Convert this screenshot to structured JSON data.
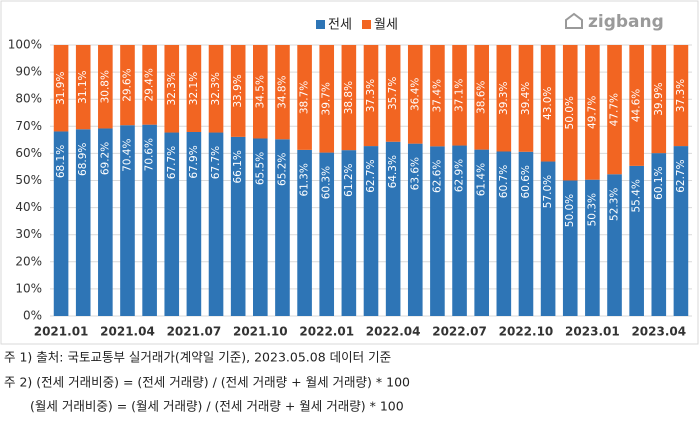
{
  "chart_data": {
    "type": "stacked_bar",
    "logo": "zigbang",
    "categories": [
      "2021.01",
      null,
      null,
      "2021.04",
      null,
      null,
      "2021.07",
      null,
      null,
      "2021.10",
      null,
      null,
      "2022.01",
      null,
      null,
      "2022.04",
      null,
      null,
      "2022.07",
      null,
      null,
      "2022.10",
      null,
      null,
      "2023.01",
      null,
      null,
      "2023.04",
      null
    ],
    "series": [
      {
        "name": "전세",
        "color": "#2e75b6",
        "values": [
          68.1,
          68.9,
          69.2,
          70.4,
          70.6,
          67.7,
          67.9,
          67.7,
          66.1,
          65.5,
          65.2,
          61.3,
          60.3,
          61.2,
          62.7,
          64.3,
          63.6,
          62.6,
          62.9,
          61.4,
          60.7,
          60.6,
          57.0,
          50.0,
          50.3,
          52.3,
          55.4,
          60.1,
          62.7
        ],
        "value_labels": [
          "68.1%",
          "68.9%",
          "69.2%",
          "70.4%",
          "70.6%",
          "67.7%",
          "67.9%",
          "67.7%",
          "66.1%",
          "65.5%",
          "65.2%",
          "61.3%",
          "60.3%",
          "61.2%",
          "62.7%",
          "64.3%",
          "63.6%",
          "62.6%",
          "62.9%",
          "61.4%",
          "60.7%",
          "60.6%",
          "57.0%",
          "50.0%",
          "50.3%",
          "52.3%",
          "55.4%",
          "60.1%",
          "62.7%"
        ]
      },
      {
        "name": "월세",
        "color": "#f26522",
        "values": [
          31.9,
          31.1,
          30.8,
          29.6,
          29.4,
          32.3,
          32.1,
          32.3,
          33.9,
          34.5,
          34.8,
          38.7,
          39.7,
          38.8,
          37.3,
          35.7,
          36.4,
          37.4,
          37.1,
          38.6,
          39.3,
          39.4,
          43.0,
          50.0,
          49.7,
          47.7,
          44.6,
          39.9,
          37.3
        ],
        "value_labels": [
          "31.9%",
          "31.1%",
          "30.8%",
          "29.6%",
          "29.4%",
          "32.3%",
          "32.1%",
          "32.3%",
          "33.9%",
          "34.5%",
          "34.8%",
          "38.7%",
          "39.7%",
          "38.8%",
          "37.3%",
          "35.7%",
          "36.4%",
          "37.4%",
          "37.1%",
          "38.6%",
          "39.3%",
          "39.4%",
          "43.0%",
          "50.0%",
          "49.7%",
          "47.7%",
          "44.6%",
          "39.9%",
          "37.3%"
        ]
      }
    ],
    "ylim": [
      0,
      100
    ],
    "yticks": [
      {
        "value": 0,
        "label": "0%"
      },
      {
        "value": 10,
        "label": "10%"
      },
      {
        "value": 20,
        "label": "20%"
      },
      {
        "value": 30,
        "label": "30%"
      },
      {
        "value": 40,
        "label": "40%"
      },
      {
        "value": 50,
        "label": "50%"
      },
      {
        "value": 60,
        "label": "60%"
      },
      {
        "value": 70,
        "label": "70%"
      },
      {
        "value": 80,
        "label": "80%"
      },
      {
        "value": 90,
        "label": "90%"
      },
      {
        "value": 100,
        "label": "100%"
      }
    ],
    "grid": true,
    "legend": "top",
    "notes": [
      "주 1) 출처: 국토교통부 실거래가(계약일 기준), 2023.05.08  데이터 기준",
      "주 2) (전세 거래비중) = (전세 거래량) / (전세 거래량 + 월세 거래량) * 100",
      "(월세 거래비중) = (월세 거래량) / (전세 거래량 + 월세 거래량) * 100"
    ]
  }
}
